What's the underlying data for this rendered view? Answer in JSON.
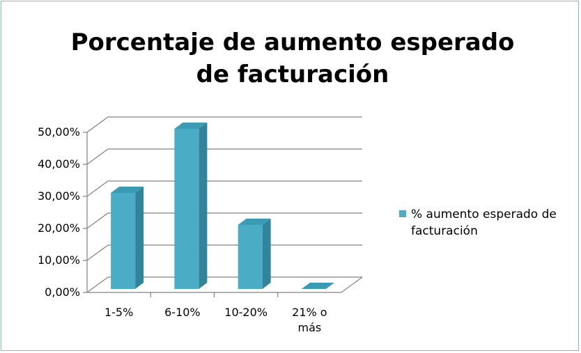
{
  "chart_data": {
    "type": "bar3d",
    "title": "Porcentaje de aumento esperado de facturación",
    "categories": [
      "1-5%",
      "6-10%",
      "10-20%",
      "21% o más"
    ],
    "series": [
      {
        "name": "% aumento esperado de facturación",
        "color": "#4bacc6",
        "values": [
          30,
          50,
          20,
          0
        ]
      }
    ],
    "ylim": [
      0,
      50
    ],
    "yticks": [
      {
        "value": 0,
        "label": "0,00%"
      },
      {
        "value": 10,
        "label": "10,00%"
      },
      {
        "value": 20,
        "label": "20,00%"
      },
      {
        "value": 30,
        "label": "30,00%"
      },
      {
        "value": 40,
        "label": "40,00%"
      },
      {
        "value": 50,
        "label": "50,00%"
      }
    ],
    "grid": true,
    "legend": "right"
  }
}
